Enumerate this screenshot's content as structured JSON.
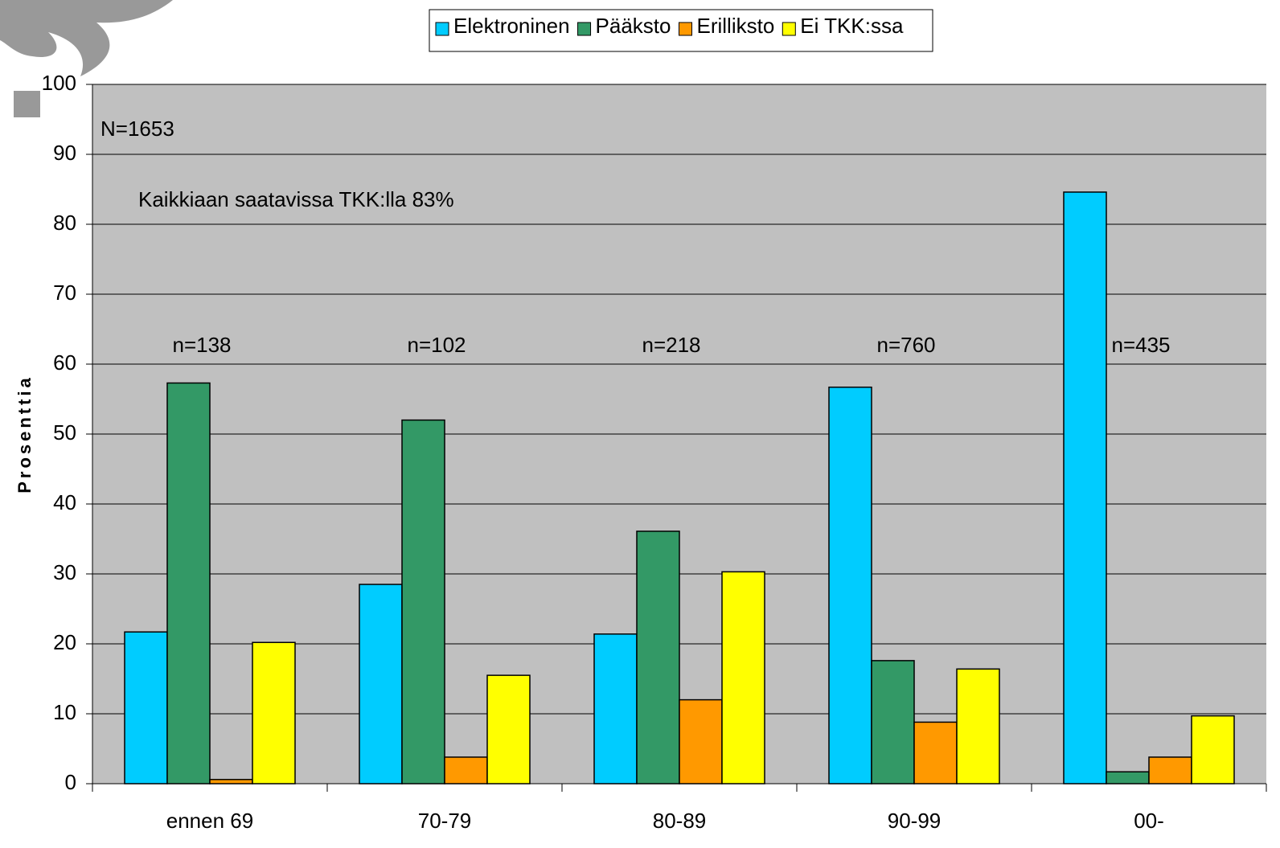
{
  "chart_data": {
    "type": "bar",
    "y_label": "Prosenttia",
    "annotations": [
      "N=1653",
      "Kaikkiaan saatavissa TKK:lla 83%"
    ],
    "categories": [
      "ennen 69",
      "70-79",
      "80-89",
      "90-99",
      "00-"
    ],
    "group_labels": [
      "n=138",
      "n=102",
      "n=218",
      "n=760",
      "n=435"
    ],
    "series": [
      {
        "name": "Elektroninen",
        "color": "#00ccff",
        "values": [
          21.7,
          28.5,
          21.4,
          56.7,
          84.6
        ]
      },
      {
        "name": "Pääksto",
        "color": "#339966",
        "values": [
          57.3,
          52.0,
          36.1,
          17.6,
          1.7
        ]
      },
      {
        "name": "Erilliksto",
        "color": "#ff9900",
        "values": [
          0.6,
          3.8,
          12.0,
          8.8,
          3.8
        ]
      },
      {
        "name": "Ei TKK:ssa",
        "color": "#ffff00",
        "values": [
          20.2,
          15.5,
          30.3,
          16.4,
          9.7
        ]
      }
    ],
    "ylim": [
      0,
      100
    ],
    "yticks": [
      0,
      10,
      20,
      30,
      40,
      50,
      60,
      70,
      80,
      90,
      100
    ],
    "grid": true
  }
}
